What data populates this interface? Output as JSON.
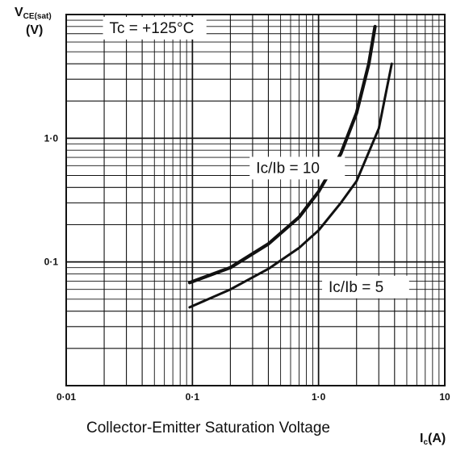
{
  "chart_data": {
    "type": "line",
    "title": "",
    "caption": "Collector-Emitter Saturation Voltage",
    "xlabel": {
      "main": "I",
      "sub": "c",
      "unit": "(A)"
    },
    "ylabel": {
      "main": "V",
      "sub": "CE(sat)",
      "unit": "(V)"
    },
    "x_scale": "log",
    "y_scale": "log",
    "xlim": [
      0.01,
      10
    ],
    "ylim": [
      0.01,
      10
    ],
    "grid": true,
    "x_ticks": [
      {
        "value": 0.01,
        "label": "0·01"
      },
      {
        "value": 0.1,
        "label": "0·1"
      },
      {
        "value": 1,
        "label": "1·0"
      },
      {
        "value": 10,
        "label": "10"
      }
    ],
    "y_ticks": [
      {
        "value": 0.1,
        "label": "0·1"
      },
      {
        "value": 1,
        "label": "1·0"
      }
    ],
    "annotations": [
      {
        "text": "Tc = +125°C",
        "x": 0.022,
        "y": 7.3
      },
      {
        "text": "Ic/Ib = 10",
        "x": 0.32,
        "y": 0.54
      },
      {
        "text": "Ic/Ib = 5",
        "x": 1.2,
        "y": 0.059
      }
    ],
    "series": [
      {
        "name": "Ic/Ib = 10",
        "x": [
          0.095,
          0.2,
          0.4,
          0.7,
          1.0,
          1.5,
          2.0,
          2.5,
          2.8
        ],
        "y": [
          0.068,
          0.09,
          0.14,
          0.23,
          0.37,
          0.75,
          1.6,
          4.0,
          8.0
        ]
      },
      {
        "name": "Ic/Ib = 5",
        "x": [
          0.095,
          0.2,
          0.4,
          0.7,
          1.0,
          1.5,
          2.0,
          3.0,
          3.8
        ],
        "y": [
          0.043,
          0.06,
          0.088,
          0.13,
          0.18,
          0.3,
          0.45,
          1.2,
          4.0
        ]
      }
    ]
  }
}
